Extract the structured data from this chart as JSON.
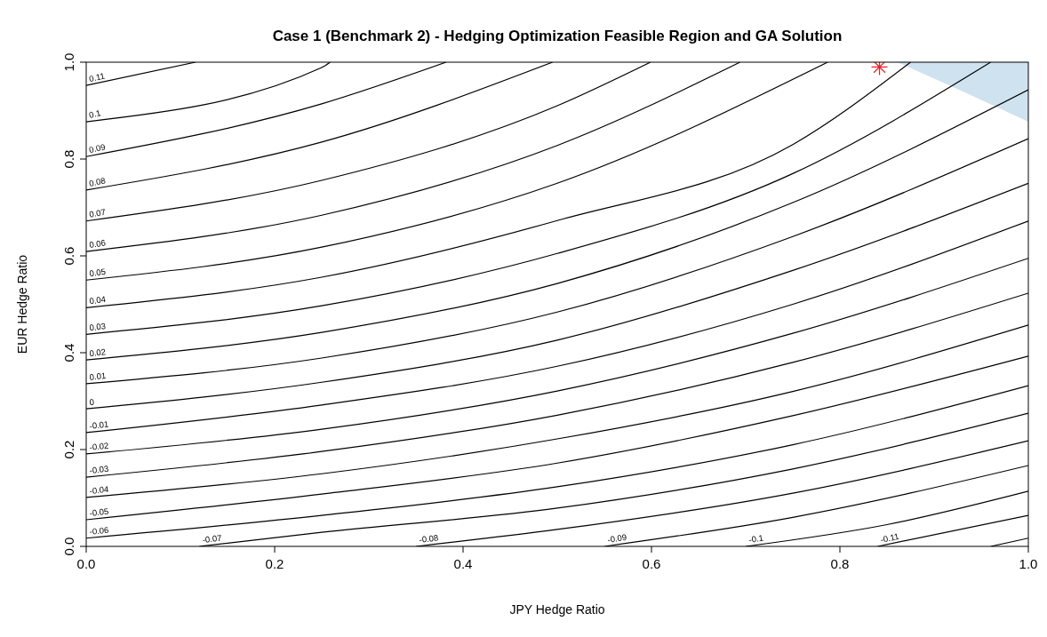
{
  "chart_data": {
    "type": "line",
    "title": "Case 1 (Benchmark 2) - Hedging Optimization Feasible Region and GA Solution",
    "xlabel": "JPY Hedge Ratio",
    "ylabel": "EUR Hedge Ratio",
    "xlim": [
      0,
      1
    ],
    "ylim": [
      0,
      1
    ],
    "xticks": [
      {
        "value": 0,
        "label": "0.0"
      },
      {
        "value": 0.2,
        "label": "0.2"
      },
      {
        "value": 0.4,
        "label": "0.4"
      },
      {
        "value": 0.6,
        "label": "0.6"
      },
      {
        "value": 0.8,
        "label": "0.8"
      },
      {
        "value": 1,
        "label": "1.0"
      }
    ],
    "yticks": [
      {
        "value": 0,
        "label": "0.0"
      },
      {
        "value": 0.2,
        "label": "0.2"
      },
      {
        "value": 0.4,
        "label": "0.4"
      },
      {
        "value": 0.6,
        "label": "0.6"
      },
      {
        "value": 0.8,
        "label": "0.8"
      },
      {
        "value": 1,
        "label": "1.0"
      }
    ],
    "grid": false,
    "line_style": "solid",
    "marker": "none",
    "series": [
      {
        "type": "area",
        "color": "#cfe2ef",
        "x": [
          0.861,
          0.93,
          1,
          1
        ],
        "values": [
          1,
          0.94,
          0.877,
          1
        ]
      },
      {
        "name": "0.11",
        "color": "#000000",
        "x": [
          0,
          0.116
        ],
        "values": [
          0.952,
          1
        ]
      },
      {
        "name": "0.1",
        "color": "#000000",
        "x": [
          0,
          0.25,
          0.259
        ],
        "values": [
          0.877,
          0.989,
          1
        ]
      },
      {
        "name": "0.09",
        "color": "#000000",
        "x": [
          0,
          0.25,
          0.382
        ],
        "values": [
          0.805,
          0.914,
          1
        ]
      },
      {
        "name": "0.08",
        "color": "#000000",
        "x": [
          0,
          0.25,
          0.495
        ],
        "values": [
          0.736,
          0.835,
          1
        ]
      },
      {
        "name": "0.07",
        "color": "#000000",
        "x": [
          0,
          0.25,
          0.5,
          0.599
        ],
        "values": [
          0.672,
          0.756,
          0.91,
          1
        ]
      },
      {
        "name": "0.06",
        "color": "#000000",
        "x": [
          0,
          0.25,
          0.5,
          0.694
        ],
        "values": [
          0.609,
          0.684,
          0.828,
          1
        ]
      },
      {
        "name": "0.05",
        "color": "#000000",
        "x": [
          0,
          0.25,
          0.5,
          0.787
        ],
        "values": [
          0.55,
          0.618,
          0.75,
          1
        ]
      },
      {
        "name": "0.04",
        "color": "#000000",
        "x": [
          0,
          0.25,
          0.5,
          0.75,
          0.875
        ],
        "values": [
          0.493,
          0.556,
          0.673,
          0.83,
          1
        ]
      },
      {
        "name": "0.03",
        "color": "#000000",
        "x": [
          0,
          0.25,
          0.5,
          0.75,
          0.96
        ],
        "values": [
          0.438,
          0.497,
          0.605,
          0.77,
          1
        ]
      },
      {
        "name": "0.02",
        "color": "#000000",
        "x": [
          0,
          0.25,
          0.5,
          0.75,
          1
        ],
        "values": [
          0.385,
          0.442,
          0.543,
          0.71,
          0.943
        ]
      },
      {
        "name": "0.01",
        "color": "#000000",
        "x": [
          0,
          0.25,
          0.5,
          0.75,
          1
        ],
        "values": [
          0.336,
          0.389,
          0.484,
          0.64,
          0.842
        ]
      },
      {
        "name": "0",
        "color": "#000000",
        "x": [
          0,
          0.25,
          0.5,
          0.75,
          1
        ],
        "values": [
          0.284,
          0.339,
          0.426,
          0.57,
          0.75
        ]
      },
      {
        "name": "-0.01",
        "color": "#000000",
        "x": [
          0,
          0.25,
          0.5,
          0.75,
          1
        ],
        "values": [
          0.235,
          0.292,
          0.372,
          0.5,
          0.672
        ]
      },
      {
        "name": "-0.02",
        "color": "#000000",
        "x": [
          0,
          0.25,
          0.5,
          0.75,
          1
        ],
        "values": [
          0.191,
          0.242,
          0.321,
          0.44,
          0.595
        ]
      },
      {
        "name": "-0.03",
        "color": "#000000",
        "x": [
          0,
          0.25,
          0.5,
          0.75,
          1
        ],
        "values": [
          0.143,
          0.196,
          0.271,
          0.38,
          0.523
        ]
      },
      {
        "name": "-0.04",
        "color": "#000000",
        "x": [
          0,
          0.25,
          0.5,
          0.75,
          1
        ],
        "values": [
          0.101,
          0.15,
          0.222,
          0.32,
          0.457
        ]
      },
      {
        "name": "-0.05",
        "color": "#000000",
        "x": [
          0,
          0.25,
          0.5,
          0.75,
          1
        ],
        "values": [
          0.055,
          0.108,
          0.172,
          0.27,
          0.393
        ]
      },
      {
        "name": "-0.06",
        "color": "#000000",
        "x": [
          0,
          0.25,
          0.5,
          0.75,
          1
        ],
        "values": [
          0.017,
          0.064,
          0.123,
          0.21,
          0.332
        ]
      },
      {
        "name": "-0.07",
        "color": "#000000",
        "x": [
          0.12,
          0.25,
          0.5,
          0.75,
          1
        ],
        "values": [
          0,
          0.029,
          0.079,
          0.16,
          0.275
        ]
      },
      {
        "name": "-0.08",
        "color": "#000000",
        "x": [
          0.35,
          0.5,
          0.75,
          1
        ],
        "values": [
          0,
          0.035,
          0.11,
          0.218
        ]
      },
      {
        "name": "-0.09",
        "color": "#000000",
        "x": [
          0.55,
          0.75,
          1
        ],
        "values": [
          0,
          0.06,
          0.167
        ]
      },
      {
        "name": "-0.1",
        "color": "#000000",
        "x": [
          0.7,
          0.85,
          1
        ],
        "values": [
          0,
          0.045,
          0.114
        ]
      },
      {
        "name": "-0.11",
        "color": "#000000",
        "x": [
          0.84,
          1
        ],
        "values": [
          0,
          0.064
        ]
      },
      {
        "color": "#000000",
        "x": [
          0.96,
          1
        ],
        "values": [
          0,
          0.017
        ]
      },
      {
        "type": "scatter",
        "marker": "cross",
        "color": "#e3262b",
        "x": [
          0.842
        ],
        "values": [
          0.99
        ]
      }
    ]
  }
}
